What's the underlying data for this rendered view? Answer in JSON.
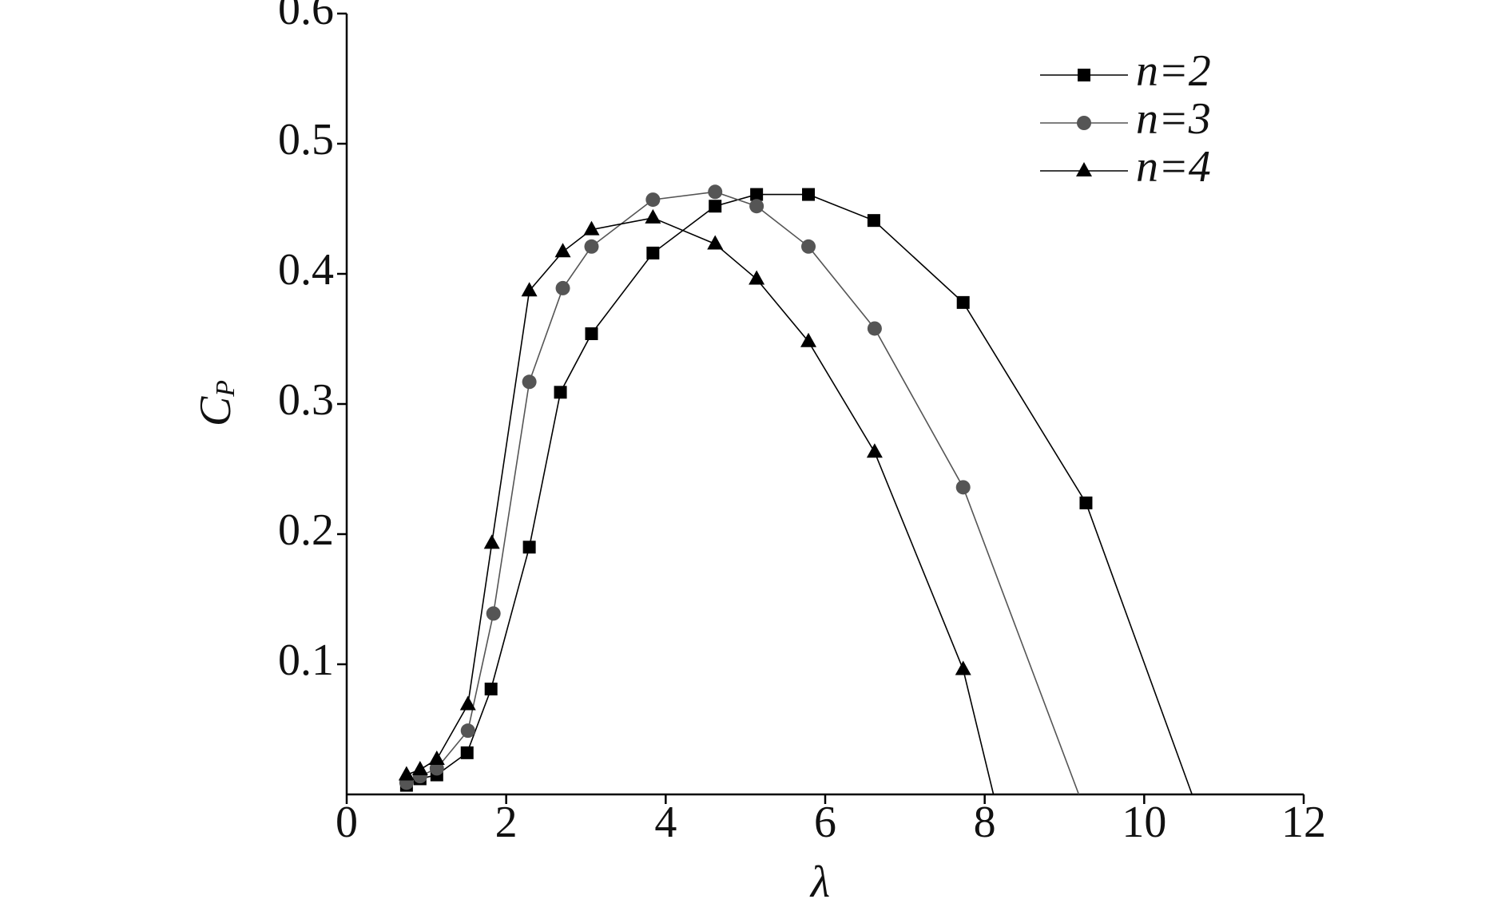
{
  "chart_data": {
    "type": "line",
    "x_label": "λ",
    "y_label": {
      "main": "C",
      "sub": "P"
    },
    "xlim": [
      0,
      12
    ],
    "xticks": [
      0,
      2,
      4,
      6,
      8,
      10,
      12
    ],
    "ylim": [
      0,
      0.6
    ],
    "yticks": [
      0.1,
      0.2,
      0.3,
      0.4,
      0.5,
      0.6
    ],
    "series": [
      {
        "name": "n=2",
        "color": "#000000",
        "marker": "square",
        "x": [
          0.75,
          0.92,
          1.13,
          1.51,
          1.81,
          2.29,
          2.68,
          3.07,
          3.84,
          4.62,
          5.14,
          5.79,
          6.61,
          7.73,
          9.27,
          10.6
        ],
        "values": [
          0.007,
          0.012,
          0.015,
          0.032,
          0.081,
          0.19,
          0.309,
          0.354,
          0.416,
          0.452,
          0.461,
          0.461,
          0.441,
          0.378,
          0.224,
          0
        ]
      },
      {
        "name": "n=3",
        "color": "#555555",
        "marker": "circle",
        "x": [
          0.75,
          0.92,
          1.13,
          1.52,
          1.84,
          2.29,
          2.71,
          3.07,
          3.84,
          4.62,
          5.14,
          5.79,
          6.62,
          7.73,
          9.18
        ],
        "values": [
          0.009,
          0.014,
          0.02,
          0.049,
          0.139,
          0.317,
          0.389,
          0.421,
          0.457,
          0.463,
          0.452,
          0.421,
          0.358,
          0.236,
          0
        ]
      },
      {
        "name": "n=4",
        "color": "#000000",
        "marker": "triangle",
        "x": [
          0.75,
          0.92,
          1.13,
          1.52,
          1.82,
          2.29,
          2.71,
          3.07,
          3.84,
          4.62,
          5.14,
          5.79,
          6.62,
          7.73,
          8.11
        ],
        "values": [
          0.015,
          0.019,
          0.027,
          0.069,
          0.193,
          0.387,
          0.417,
          0.434,
          0.443,
          0.423,
          0.396,
          0.348,
          0.263,
          0.096,
          0
        ]
      }
    ]
  }
}
